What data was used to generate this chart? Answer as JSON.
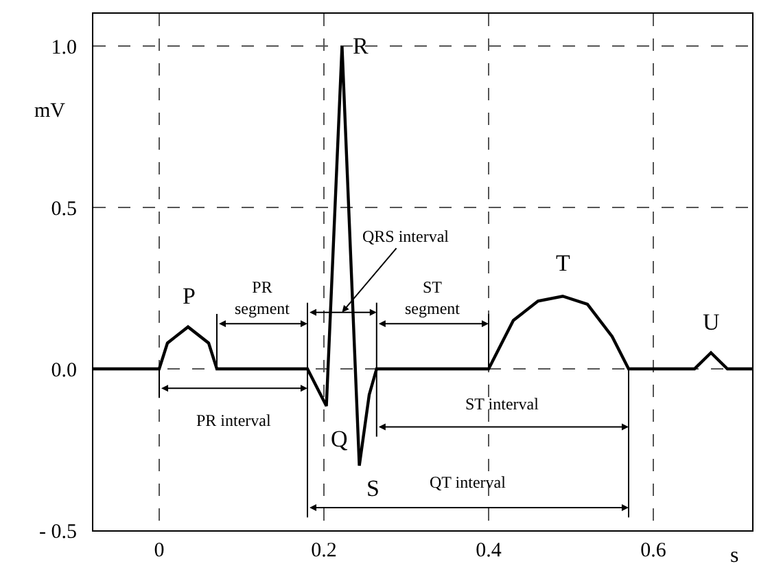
{
  "chart_data": {
    "type": "line",
    "xlabel": "s",
    "ylabel": "mV",
    "x": [
      -0.08,
      0,
      0.01,
      0.035,
      0.06,
      0.07,
      0.18,
      0.203,
      0.222,
      0.243,
      0.255,
      0.264,
      0.4,
      0.43,
      0.46,
      0.49,
      0.52,
      0.55,
      0.57,
      0.65,
      0.67,
      0.69,
      0.72
    ],
    "series": [
      {
        "color": "#000000",
        "values": [
          0,
          0,
          0.08,
          0.13,
          0.08,
          0,
          0,
          -0.115,
          1.0,
          -0.3,
          -0.08,
          0,
          0,
          0.15,
          0.21,
          0.225,
          0.2,
          0.1,
          0,
          0,
          0.05,
          0,
          0
        ]
      }
    ],
    "xlim": [
      -0.08,
      0.72
    ],
    "ylim": [
      -0.5,
      1.1
    ],
    "xticks": [
      0,
      0.2,
      0.4,
      0.6
    ],
    "yticks": [
      {
        "value": -0.5,
        "label": "- 0.5"
      },
      {
        "value": 0,
        "label": "0.0"
      },
      {
        "value": 0.5,
        "label": "0.5"
      },
      {
        "value": 1.0,
        "label": "1.0"
      }
    ],
    "grid": true,
    "line_style": "solid",
    "marker": "none",
    "annotations": [
      {
        "text": "P",
        "x": 0.035,
        "y": 0.13
      },
      {
        "text": "Q",
        "x": 0.203,
        "y": -0.115
      },
      {
        "text": "R",
        "x": 0.222,
        "y": 1.0
      },
      {
        "text": "S",
        "x": 0.243,
        "y": -0.3
      },
      {
        "text": "T",
        "x": 0.49,
        "y": 0.225
      },
      {
        "text": "U",
        "x": 0.67,
        "y": 0.05
      },
      "PR\nsegment",
      "PR interval",
      "QRS interval",
      "ST\nsegment",
      "ST interval",
      "QT interval"
    ]
  }
}
